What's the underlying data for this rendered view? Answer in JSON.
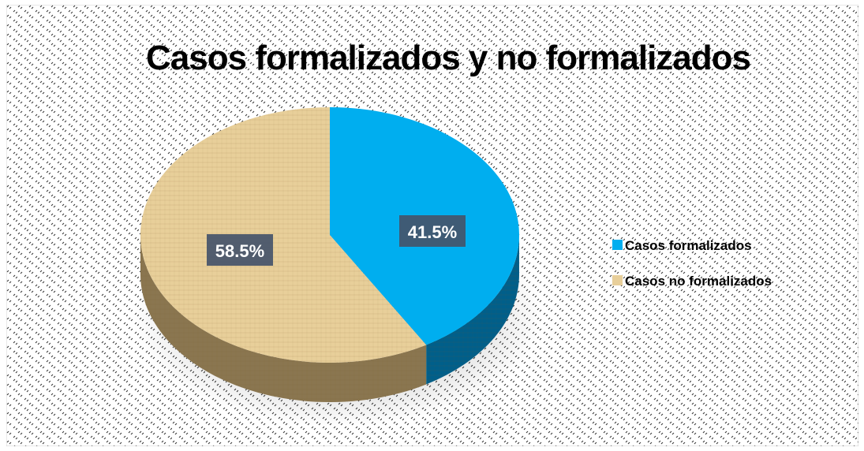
{
  "chart_data": {
    "type": "pie",
    "title": "Casos formalizados y no formalizados",
    "slices": [
      {
        "name": "Casos formalizados",
        "value": 41.5,
        "label": "41.5%",
        "color": "#00AEEF",
        "side_color": "#005F8A"
      },
      {
        "name": "Casos no formalizados",
        "value": 58.5,
        "label": "58.5%",
        "color": "#E8CF9A",
        "side_color": "#8A7650"
      }
    ],
    "legend_placement": "right",
    "style": "3d"
  }
}
